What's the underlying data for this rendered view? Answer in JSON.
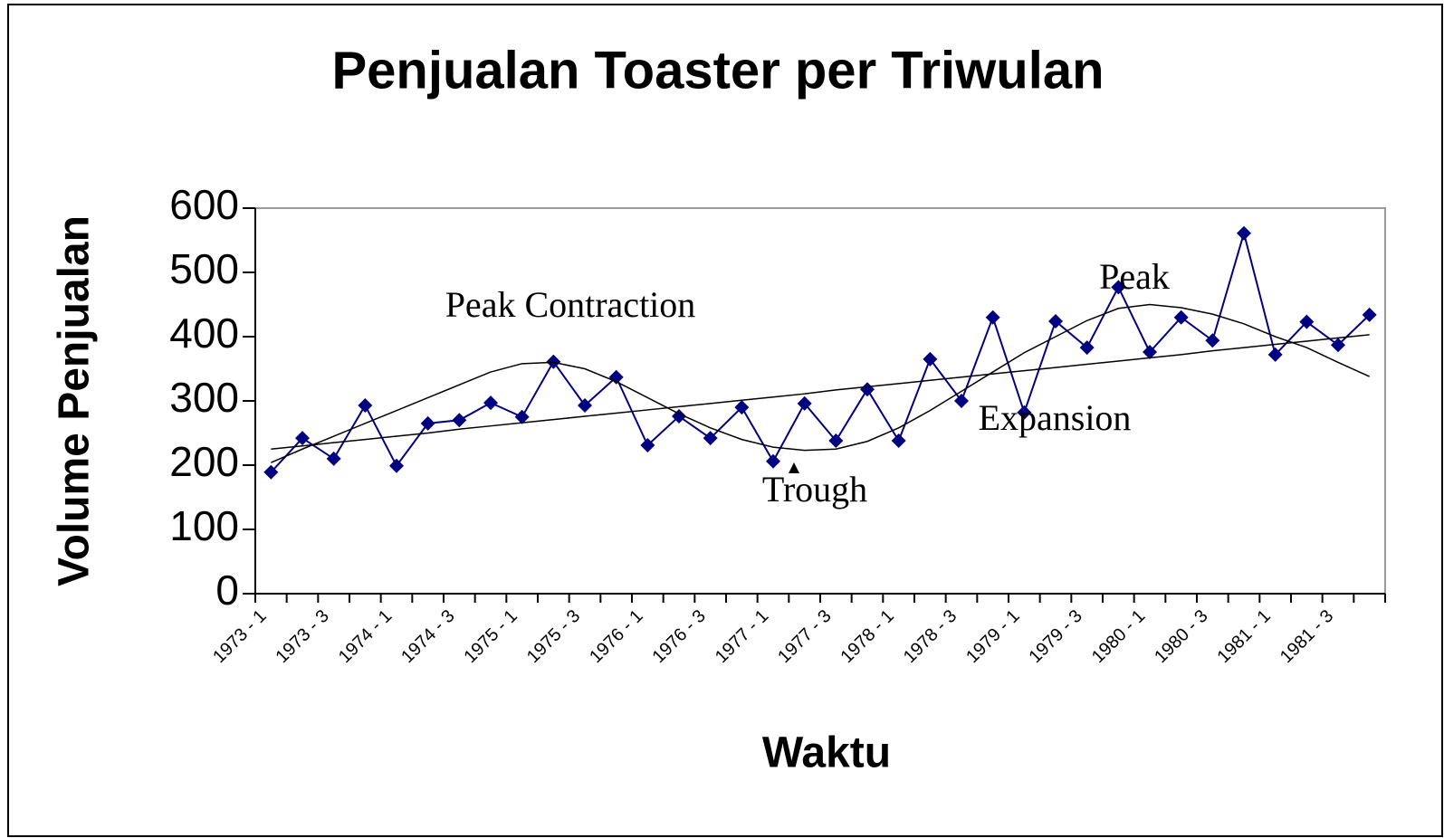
{
  "chart_data": {
    "type": "line",
    "title": "Penjualan Toaster per Triwulan",
    "x_label": "Waktu",
    "y_label": "Volume Penjualan",
    "categories": [
      "1973 - 1",
      null,
      "1973 - 3",
      null,
      "1974 - 1",
      null,
      "1974 - 3",
      null,
      "1975 - 1",
      null,
      "1975 - 3",
      null,
      "1976 - 1",
      null,
      "1976 - 3",
      null,
      "1977 - 1",
      null,
      "1977 - 3",
      null,
      "1978 - 1",
      null,
      "1978 - 3",
      null,
      "1979 - 1",
      null,
      "1979 - 3",
      null,
      "1980 - 1",
      null,
      "1980 - 3",
      null,
      "1981 - 1",
      null,
      "1981 - 3",
      null
    ],
    "series": [
      {
        "color": "#000080",
        "marker": "diamond",
        "values": [
          189,
          242,
          210,
          293,
          199,
          265,
          270,
          297,
          275,
          361,
          293,
          337,
          231,
          276,
          242,
          290,
          206,
          296,
          238,
          318,
          238,
          365,
          300,
          430,
          282,
          424,
          383,
          477,
          376,
          430,
          394,
          561,
          372,
          423,
          387,
          434
        ]
      },
      {
        "color": "#000000",
        "values": [
          225,
          230,
          235,
          240,
          245,
          250,
          256,
          261,
          266,
          271,
          276,
          281,
          286,
          291,
          296,
          301,
          306,
          311,
          317,
          322,
          327,
          332,
          337,
          342,
          347,
          352,
          357,
          362,
          367,
          372,
          378,
          383,
          388,
          393,
          398,
          403
        ]
      },
      {
        "color": "#000000",
        "values": [
          204,
          225,
          245,
          265,
          285,
          305,
          325,
          345,
          358,
          360,
          350,
          330,
          305,
          280,
          258,
          240,
          228,
          223,
          225,
          237,
          258,
          285,
          315,
          345,
          375,
          400,
          425,
          444,
          450,
          445,
          435,
          420,
          400,
          383,
          360,
          338
        ]
      }
    ],
    "annotations": [
      "Peak Contraction",
      "Trough",
      "Expansion",
      "Peak"
    ],
    "ylim": [
      0,
      600
    ],
    "yticks": [
      0,
      100,
      200,
      300,
      400,
      500,
      600
    ],
    "grid": false
  }
}
